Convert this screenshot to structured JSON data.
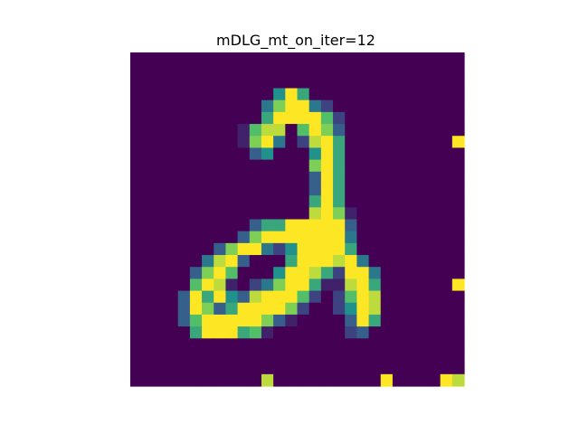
{
  "title": "mDLG_mt_on_iter=12",
  "chart_data": {
    "type": "heatmap",
    "title": "mDLG_mt_on_iter=12",
    "colormap": "viridis",
    "vmin": 0,
    "vmax": 1,
    "axes_visible": false,
    "rows": 28,
    "cols": 28,
    "values": [
      [
        0,
        0,
        0,
        0,
        0,
        0,
        0,
        0,
        0,
        0,
        0,
        0,
        0,
        0,
        0,
        0,
        0,
        0,
        0,
        0,
        0,
        0,
        0,
        0,
        0,
        0,
        0,
        0
      ],
      [
        0,
        0,
        0,
        0,
        0,
        0,
        0,
        0,
        0,
        0,
        0,
        0,
        0,
        0,
        0,
        0,
        0,
        0,
        0,
        0,
        0,
        0,
        0,
        0,
        0,
        0,
        0,
        0
      ],
      [
        0,
        0,
        0,
        0,
        0,
        0,
        0,
        0,
        0,
        0,
        0,
        0,
        0,
        0,
        0,
        0,
        0,
        0,
        0,
        0,
        0,
        0,
        0,
        0,
        0,
        0,
        0,
        0
      ],
      [
        0,
        0,
        0,
        0,
        0,
        0,
        0,
        0,
        0,
        0,
        0,
        0,
        0.5,
        1,
        0.6,
        0,
        0,
        0,
        0,
        0,
        0,
        0,
        0,
        0,
        0,
        0,
        0,
        0
      ],
      [
        0,
        0,
        0,
        0,
        0,
        0,
        0,
        0,
        0,
        0,
        0,
        0.4,
        0.8,
        1,
        1,
        0.4,
        0.2,
        0,
        0,
        0,
        0,
        0,
        0,
        0,
        0,
        0,
        0,
        0
      ],
      [
        0,
        0,
        0,
        0,
        0,
        0,
        0,
        0,
        0,
        0,
        0,
        0.6,
        1,
        1,
        1,
        1,
        0.7,
        0.2,
        0,
        0,
        0,
        0,
        0,
        0,
        0,
        0,
        0,
        0
      ],
      [
        0,
        0,
        0,
        0,
        0,
        0,
        0,
        0,
        0,
        0.1,
        0.7,
        0.9,
        0.9,
        0,
        0.7,
        1,
        0.8,
        0.3,
        0,
        0,
        0,
        0,
        0,
        0,
        0,
        0,
        0,
        0
      ],
      [
        0,
        0,
        0,
        0,
        0,
        0,
        0,
        0,
        0,
        0.1,
        0.8,
        1,
        0.4,
        0,
        0.2,
        0.9,
        1,
        0.6,
        0,
        0,
        0,
        0,
        0,
        0,
        0,
        0,
        0,
        0
      ],
      [
        0,
        0,
        0,
        0,
        0,
        0,
        0,
        0,
        0,
        0,
        0.3,
        0.5,
        0,
        0,
        0,
        0.5,
        1,
        0.6,
        0,
        0,
        0,
        0,
        0,
        0,
        0,
        0,
        0,
        0
      ],
      [
        0,
        0,
        0,
        0,
        0,
        0,
        0,
        0,
        0,
        0,
        0,
        0,
        0,
        0,
        0,
        0.8,
        1,
        0.6,
        0,
        0,
        0,
        0,
        0,
        0,
        0,
        0,
        0,
        0
      ],
      [
        0,
        0,
        0,
        0,
        0,
        0,
        0,
        0,
        0,
        0,
        0,
        0,
        0,
        0,
        0,
        0.3,
        1,
        0.6,
        0,
        0,
        0,
        0,
        0,
        0,
        0,
        0,
        0,
        0
      ],
      [
        0,
        0,
        0,
        0,
        0,
        0,
        0,
        0,
        0,
        0,
        0,
        0,
        0,
        0,
        0,
        0.3,
        1,
        0.6,
        0,
        0,
        0,
        0,
        0,
        0,
        0,
        0,
        0,
        0
      ],
      [
        0,
        0,
        0,
        0,
        0,
        0,
        0,
        0,
        0,
        0,
        0,
        0,
        0,
        0,
        0,
        0.6,
        1,
        0.6,
        0,
        0,
        0,
        0,
        0,
        0,
        0,
        0,
        0,
        0
      ],
      [
        0,
        0,
        0,
        0,
        0,
        0,
        0,
        0,
        0,
        0,
        0,
        0,
        0,
        0,
        0,
        0.9,
        1,
        0.8,
        0.1,
        0,
        0,
        0,
        0,
        0,
        0,
        0,
        0,
        0
      ],
      [
        0,
        0,
        0,
        0,
        0,
        0,
        0,
        0,
        0,
        0,
        0.3,
        0.6,
        0.6,
        1,
        1,
        1,
        1,
        1,
        0.3,
        0,
        0,
        0,
        0,
        0,
        0,
        0,
        0,
        0
      ],
      [
        0,
        0,
        0,
        0,
        0,
        0,
        0,
        0,
        0,
        0.3,
        0.8,
        1,
        1,
        1,
        1,
        1,
        1,
        1,
        0.4,
        0,
        0,
        0,
        0,
        0,
        0,
        0,
        0,
        0
      ],
      [
        0,
        0,
        0,
        0,
        0,
        0,
        0,
        0.3,
        0.8,
        1,
        1,
        0.4,
        0.2,
        0.5,
        1,
        1,
        1,
        1,
        0.6,
        0,
        0,
        0,
        0,
        0,
        0,
        0,
        0,
        0
      ],
      [
        0,
        0,
        0,
        0,
        0,
        0,
        0.4,
        0.9,
        1,
        0.3,
        0,
        0,
        0,
        0.6,
        1,
        1,
        1,
        0.9,
        1,
        0.4,
        0,
        0,
        0,
        0,
        0,
        0,
        0,
        0
      ],
      [
        0,
        0,
        0,
        0,
        0,
        0.3,
        0.8,
        1,
        0.7,
        0,
        0,
        0,
        0.5,
        1,
        1,
        0.9,
        0.6,
        0.2,
        1,
        1,
        0.4,
        0,
        0,
        0,
        0,
        0,
        0,
        0
      ],
      [
        0,
        0,
        0,
        0,
        0,
        0.7,
        1,
        0.9,
        0.1,
        0,
        0.2,
        0.4,
        0.8,
        1,
        1,
        0.6,
        0.1,
        0.1,
        0.9,
        1,
        0.6,
        0,
        0,
        0,
        0,
        0,
        0,
        0
      ],
      [
        0,
        0,
        0,
        0,
        0.3,
        1,
        0.6,
        1,
        0.5,
        0.3,
        0.9,
        1,
        1,
        1,
        0.7,
        0.2,
        0,
        0.2,
        0.7,
        1,
        0.9,
        0,
        0,
        0,
        0,
        0,
        0,
        0
      ],
      [
        0,
        0,
        0,
        0,
        0.3,
        1,
        0.8,
        0.3,
        0.6,
        1,
        1,
        1,
        1,
        0.8,
        0.2,
        0,
        0,
        0.2,
        0.5,
        1,
        0.9,
        0,
        0,
        0,
        0,
        0,
        0,
        0
      ],
      [
        0,
        0,
        0,
        0,
        0.3,
        0.7,
        1,
        1,
        1,
        1,
        1,
        0.8,
        0.3,
        0.1,
        0,
        0,
        0,
        0,
        0.3,
        1,
        0.6,
        0,
        0,
        0,
        0,
        0,
        0,
        0
      ],
      [
        0,
        0,
        0,
        0,
        0,
        0.6,
        1,
        1,
        1,
        0.6,
        0.7,
        0.1,
        0,
        0,
        0,
        0,
        0,
        0,
        0.2,
        0.3,
        0,
        0,
        0,
        0,
        0,
        0,
        0,
        0
      ],
      [
        0,
        0,
        0,
        0,
        0,
        0,
        0,
        0,
        0,
        0,
        0,
        0,
        0,
        0,
        0,
        0,
        0,
        0,
        0,
        0,
        0,
        0,
        0,
        0,
        0,
        0,
        0,
        0
      ],
      [
        0,
        0,
        0,
        0,
        0,
        0,
        0,
        0,
        0,
        0,
        0,
        0,
        0,
        0,
        0,
        0,
        0,
        0,
        0,
        0,
        0,
        0,
        0,
        0,
        0,
        0,
        0,
        0
      ],
      [
        0,
        0,
        0,
        0,
        0,
        0,
        0,
        0,
        0,
        0,
        0,
        0,
        0,
        0,
        0,
        0,
        0,
        0,
        0,
        0,
        0,
        0,
        0,
        0,
        0,
        0,
        0,
        0
      ],
      [
        0,
        0,
        0,
        0,
        0,
        0,
        0,
        0,
        0,
        0,
        0,
        0.9,
        0,
        0,
        0,
        0,
        0,
        0,
        0,
        0,
        0,
        0,
        0,
        0,
        0,
        0,
        0,
        0
      ]
    ],
    "extra_cells": [
      {
        "row": 7,
        "col": 27,
        "value": 1
      },
      {
        "row": 19,
        "col": 27,
        "value": 1
      },
      {
        "row": 27,
        "col": 21,
        "value": 1
      },
      {
        "row": 27,
        "col": 26,
        "value": 1
      },
      {
        "row": 27,
        "col": 27,
        "value": 0.9
      }
    ]
  }
}
